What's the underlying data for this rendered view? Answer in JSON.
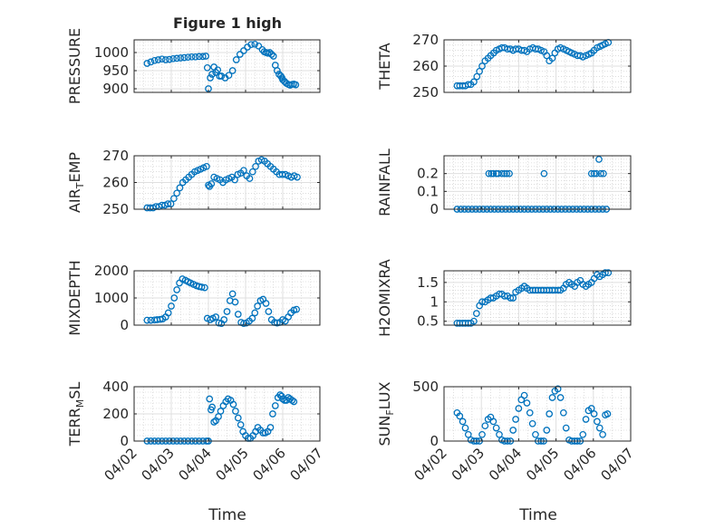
{
  "figure": {
    "title": "Figure 1 high",
    "xlabel": "Time"
  },
  "chart_data": [
    {
      "type": "scatter",
      "ylabel": "PRESSURE",
      "xlim": [
        0,
        5
      ],
      "ylim": [
        890,
        1035
      ],
      "yticks": [
        900,
        950,
        1000
      ],
      "ytick_labels": [
        "900",
        "950",
        "1000"
      ],
      "xticks": [
        0,
        1,
        2,
        3,
        4,
        5
      ],
      "xtick_labels": [],
      "show_xlabel": false,
      "x": [
        0.35,
        0.45,
        0.55,
        0.65,
        0.75,
        0.85,
        0.95,
        1.05,
        1.15,
        1.25,
        1.35,
        1.45,
        1.55,
        1.65,
        1.75,
        1.85,
        1.93,
        1.97,
        2.0,
        2.05,
        2.1,
        2.15,
        2.2,
        2.25,
        2.3,
        2.35,
        2.45,
        2.55,
        2.65,
        2.75,
        2.85,
        2.95,
        3.05,
        3.15,
        3.25,
        3.35,
        3.45,
        3.5,
        3.55,
        3.6,
        3.65,
        3.7,
        3.75,
        3.8,
        3.85,
        3.9,
        3.95,
        3.98,
        4.0,
        4.05,
        4.1,
        4.15,
        4.2,
        4.25,
        4.3,
        4.35
      ],
      "y": [
        970,
        974,
        978,
        980,
        982,
        980,
        981,
        983,
        984,
        985,
        986,
        987,
        988,
        988,
        989,
        989,
        990,
        958,
        900,
        930,
        940,
        960,
        945,
        952,
        935,
        935,
        930,
        937,
        950,
        980,
        995,
        1005,
        1015,
        1022,
        1023,
        1018,
        1008,
        1002,
        1000,
        998,
        1000,
        995,
        990,
        965,
        950,
        940,
        935,
        930,
        925,
        920,
        915,
        912,
        910,
        912,
        913,
        911
      ]
    },
    {
      "type": "scatter",
      "ylabel": "THETA",
      "xlim": [
        0,
        5
      ],
      "ylim": [
        250,
        270
      ],
      "yticks": [
        250,
        260,
        270
      ],
      "ytick_labels": [
        "250",
        "260",
        "270"
      ],
      "xticks": [
        0,
        1,
        2,
        3,
        4,
        5
      ],
      "xtick_labels": [],
      "show_xlabel": false,
      "x": [
        0.35,
        0.42,
        0.5,
        0.57,
        0.65,
        0.72,
        0.8,
        0.88,
        0.95,
        1.02,
        1.1,
        1.18,
        1.25,
        1.33,
        1.4,
        1.48,
        1.55,
        1.62,
        1.7,
        1.78,
        1.85,
        1.92,
        2.0,
        2.08,
        2.15,
        2.22,
        2.3,
        2.38,
        2.45,
        2.52,
        2.6,
        2.68,
        2.75,
        2.82,
        2.9,
        2.97,
        3.05,
        3.12,
        3.2,
        3.28,
        3.35,
        3.42,
        3.5,
        3.58,
        3.65,
        3.72,
        3.8,
        3.88,
        3.95,
        4.02,
        4.1,
        4.18,
        4.25,
        4.32,
        4.4
      ],
      "y": [
        252.5,
        252.5,
        252.5,
        252.5,
        253,
        253,
        254,
        256,
        258,
        260,
        262,
        263,
        264,
        265,
        266,
        266.5,
        267,
        267,
        266.5,
        266.5,
        266,
        266.5,
        266.5,
        266,
        266,
        265.5,
        266.5,
        267,
        266.5,
        266.5,
        266,
        265.5,
        264,
        262,
        263,
        265,
        266.5,
        267,
        266.5,
        266,
        265.5,
        265,
        264.5,
        264,
        264,
        263.5,
        264,
        264.5,
        265,
        266,
        267,
        267.5,
        268,
        268.5,
        269
      ]
    },
    {
      "type": "scatter",
      "ylabel": "AIR_TEMP",
      "xlim": [
        0,
        5
      ],
      "ylim": [
        250,
        270
      ],
      "yticks": [
        250,
        260,
        270
      ],
      "ytick_labels": [
        "250",
        "260",
        "270"
      ],
      "xticks": [
        0,
        1,
        2,
        3,
        4,
        5
      ],
      "xtick_labels": [],
      "show_xlabel": false,
      "x": [
        0.35,
        0.43,
        0.51,
        0.59,
        0.67,
        0.75,
        0.83,
        0.91,
        0.99,
        1.07,
        1.15,
        1.23,
        1.31,
        1.39,
        1.47,
        1.55,
        1.63,
        1.71,
        1.79,
        1.87,
        1.95,
        2.0,
        2.03,
        2.08,
        2.15,
        2.23,
        2.31,
        2.39,
        2.47,
        2.55,
        2.63,
        2.71,
        2.79,
        2.87,
        2.95,
        3.03,
        3.11,
        3.19,
        3.27,
        3.35,
        3.43,
        3.51,
        3.59,
        3.67,
        3.75,
        3.83,
        3.91,
        3.99,
        4.07,
        4.15,
        4.23,
        4.31,
        4.39
      ],
      "y": [
        250.5,
        250.5,
        250.5,
        251,
        251,
        251.5,
        251.5,
        252,
        252,
        254,
        256,
        258,
        260,
        261,
        262,
        263,
        264,
        264.5,
        265,
        265.5,
        266,
        259,
        258.5,
        259.5,
        262,
        261.5,
        261,
        260,
        261,
        261.5,
        262,
        261,
        263,
        263.5,
        264.5,
        262.5,
        261.5,
        264,
        266,
        268,
        268.5,
        268,
        267,
        266,
        265,
        264,
        263,
        263,
        263,
        262.5,
        262,
        262.5,
        262
      ]
    },
    {
      "type": "scatter",
      "ylabel": "RAINFALL",
      "xlim": [
        0,
        5
      ],
      "ylim": [
        0,
        0.3
      ],
      "yticks": [
        0,
        0.1,
        0.2
      ],
      "ytick_labels": [
        "0",
        "0.1",
        "0.2"
      ],
      "xticks": [
        0,
        1,
        2,
        3,
        4,
        5
      ],
      "xtick_labels": [],
      "show_xlabel": false,
      "x": [
        0.35,
        0.45,
        0.55,
        0.65,
        0.75,
        0.85,
        0.95,
        1.05,
        1.15,
        1.25,
        1.35,
        1.45,
        1.55,
        1.65,
        1.75,
        1.85,
        1.95,
        2.05,
        2.15,
        2.25,
        2.35,
        2.45,
        2.55,
        2.65,
        2.75,
        2.85,
        2.95,
        3.05,
        3.15,
        3.25,
        3.35,
        3.45,
        3.55,
        3.65,
        3.75,
        3.85,
        3.95,
        4.05,
        4.15,
        4.25,
        4.35,
        1.2,
        1.27,
        1.32,
        1.4,
        1.45,
        1.55,
        1.62,
        1.68,
        1.75,
        2.68,
        3.95,
        4.02,
        4.08,
        4.2,
        4.27,
        4.15
      ],
      "y": [
        0,
        0,
        0,
        0,
        0,
        0,
        0,
        0,
        0,
        0,
        0,
        0,
        0,
        0,
        0,
        0,
        0,
        0,
        0,
        0,
        0,
        0,
        0,
        0,
        0,
        0,
        0,
        0,
        0,
        0,
        0,
        0,
        0,
        0,
        0,
        0,
        0,
        0,
        0,
        0,
        0,
        0.2,
        0.2,
        0.2,
        0.2,
        0.2,
        0.2,
        0.2,
        0.2,
        0.2,
        0.2,
        0.2,
        0.2,
        0.2,
        0.2,
        0.2,
        0.28
      ]
    },
    {
      "type": "scatter",
      "ylabel": "MIXDEPTH",
      "xlim": [
        0,
        5
      ],
      "ylim": [
        0,
        2000
      ],
      "yticks": [
        0,
        1000,
        2000
      ],
      "ytick_labels": [
        "0",
        "1000",
        "2000"
      ],
      "xticks": [
        0,
        1,
        2,
        3,
        4,
        5
      ],
      "xtick_labels": [],
      "show_xlabel": false,
      "x": [
        0.35,
        0.45,
        0.55,
        0.62,
        0.7,
        0.77,
        0.85,
        0.92,
        1.0,
        1.08,
        1.15,
        1.22,
        1.3,
        1.38,
        1.45,
        1.52,
        1.6,
        1.68,
        1.75,
        1.82,
        1.9,
        1.97,
        2.05,
        2.12,
        2.2,
        2.28,
        2.35,
        2.42,
        2.5,
        2.58,
        2.65,
        2.72,
        2.8,
        2.88,
        2.95,
        3.02,
        3.1,
        3.18,
        3.25,
        3.32,
        3.4,
        3.47,
        3.55,
        3.62,
        3.7,
        3.78,
        3.85,
        3.92,
        4.0,
        4.07,
        4.15,
        4.22,
        4.3,
        4.37
      ],
      "y": [
        180,
        180,
        190,
        200,
        210,
        230,
        300,
        450,
        700,
        1000,
        1300,
        1550,
        1700,
        1650,
        1600,
        1550,
        1500,
        1450,
        1420,
        1400,
        1380,
        250,
        200,
        250,
        300,
        80,
        60,
        200,
        500,
        900,
        1150,
        850,
        400,
        100,
        60,
        80,
        150,
        250,
        450,
        700,
        900,
        950,
        800,
        500,
        200,
        100,
        80,
        100,
        200,
        150,
        300,
        450,
        550,
        580
      ]
    },
    {
      "type": "scatter",
      "ylabel": "H2OMIXRA",
      "xlim": [
        0,
        5
      ],
      "ylim": [
        0.4,
        1.8
      ],
      "yticks": [
        0.5,
        1,
        1.5
      ],
      "ytick_labels": [
        "0.5",
        "1",
        "1.5"
      ],
      "xticks": [
        0,
        1,
        2,
        3,
        4,
        5
      ],
      "xtick_labels": [],
      "show_xlabel": false,
      "x": [
        0.35,
        0.42,
        0.5,
        0.57,
        0.65,
        0.72,
        0.8,
        0.87,
        0.95,
        1.02,
        1.1,
        1.18,
        1.25,
        1.32,
        1.4,
        1.48,
        1.55,
        1.62,
        1.7,
        1.78,
        1.85,
        1.92,
        2.0,
        2.08,
        2.15,
        2.22,
        2.3,
        2.38,
        2.45,
        2.52,
        2.6,
        2.67,
        2.75,
        2.82,
        2.9,
        2.97,
        3.05,
        3.12,
        3.2,
        3.27,
        3.35,
        3.42,
        3.5,
        3.57,
        3.65,
        3.72,
        3.8,
        3.87,
        3.95,
        4.02,
        4.1,
        4.17,
        4.25,
        4.32,
        4.4
      ],
      "y": [
        0.45,
        0.45,
        0.45,
        0.45,
        0.45,
        0.45,
        0.5,
        0.7,
        0.9,
        1.0,
        1.0,
        1.05,
        1.1,
        1.1,
        1.15,
        1.2,
        1.2,
        1.15,
        1.15,
        1.1,
        1.1,
        1.25,
        1.3,
        1.35,
        1.4,
        1.35,
        1.3,
        1.3,
        1.3,
        1.3,
        1.3,
        1.3,
        1.3,
        1.3,
        1.3,
        1.3,
        1.3,
        1.3,
        1.35,
        1.45,
        1.5,
        1.45,
        1.4,
        1.5,
        1.55,
        1.45,
        1.4,
        1.45,
        1.5,
        1.6,
        1.7,
        1.65,
        1.7,
        1.75,
        1.75
      ]
    },
    {
      "type": "scatter",
      "ylabel": "TERR_MSL",
      "xlim": [
        0,
        5
      ],
      "ylim": [
        0,
        400
      ],
      "yticks": [
        0,
        200,
        400
      ],
      "ytick_labels": [
        "0",
        "200",
        "400"
      ],
      "xticks": [
        0,
        1,
        2,
        3,
        4,
        5
      ],
      "xtick_labels": [
        "04/02",
        "04/03",
        "04/04",
        "04/05",
        "04/06",
        "04/07"
      ],
      "show_xlabel": true,
      "x": [
        0.35,
        0.45,
        0.55,
        0.65,
        0.75,
        0.85,
        0.95,
        1.05,
        1.15,
        1.25,
        1.35,
        1.45,
        1.55,
        1.65,
        1.75,
        1.85,
        1.95,
        2.0,
        2.03,
        2.07,
        2.1,
        2.15,
        2.2,
        2.27,
        2.33,
        2.4,
        2.47,
        2.53,
        2.6,
        2.67,
        2.73,
        2.8,
        2.87,
        2.93,
        3.0,
        3.07,
        3.13,
        3.2,
        3.27,
        3.33,
        3.4,
        3.47,
        3.53,
        3.6,
        3.67,
        3.73,
        3.8,
        3.87,
        3.93,
        3.97,
        4.0,
        4.05,
        4.1,
        4.15,
        4.2,
        4.25,
        4.3
      ],
      "y": [
        0,
        0,
        0,
        0,
        0,
        0,
        0,
        0,
        0,
        0,
        0,
        0,
        0,
        0,
        0,
        0,
        0,
        0,
        310,
        230,
        250,
        140,
        150,
        180,
        220,
        260,
        290,
        310,
        300,
        270,
        220,
        170,
        120,
        70,
        40,
        20,
        20,
        40,
        70,
        100,
        80,
        60,
        60,
        70,
        100,
        200,
        260,
        320,
        340,
        330,
        310,
        300,
        300,
        320,
        310,
        300,
        290
      ]
    },
    {
      "type": "scatter",
      "ylabel": "SUN_FLUX",
      "xlim": [
        0,
        5
      ],
      "ylim": [
        0,
        500
      ],
      "yticks": [
        0,
        500
      ],
      "ytick_labels": [
        "0",
        "500"
      ],
      "xticks": [
        0,
        1,
        2,
        3,
        4,
        5
      ],
      "xtick_labels": [
        "04/02",
        "04/03",
        "04/04",
        "04/05",
        "04/06",
        "04/07"
      ],
      "show_xlabel": true,
      "x": [
        0.35,
        0.42,
        0.5,
        0.57,
        0.65,
        0.72,
        0.8,
        0.87,
        0.95,
        1.02,
        1.1,
        1.18,
        1.25,
        1.32,
        1.4,
        1.48,
        1.55,
        1.62,
        1.7,
        1.78,
        1.85,
        1.92,
        2.0,
        2.07,
        2.15,
        2.22,
        2.3,
        2.37,
        2.45,
        2.52,
        2.6,
        2.67,
        2.75,
        2.82,
        2.9,
        2.97,
        3.05,
        3.12,
        3.2,
        3.27,
        3.35,
        3.42,
        3.5,
        3.57,
        3.65,
        3.72,
        3.8,
        3.87,
        3.95,
        4.02,
        4.1,
        4.17,
        4.25,
        4.32,
        4.38
      ],
      "y": [
        260,
        230,
        180,
        120,
        60,
        10,
        0,
        0,
        0,
        60,
        140,
        200,
        220,
        180,
        120,
        60,
        10,
        0,
        0,
        0,
        100,
        200,
        300,
        380,
        420,
        350,
        260,
        160,
        60,
        0,
        0,
        0,
        100,
        250,
        400,
        460,
        480,
        400,
        260,
        120,
        10,
        0,
        0,
        0,
        0,
        60,
        200,
        280,
        300,
        250,
        180,
        120,
        60,
        240,
        250
      ]
    }
  ]
}
